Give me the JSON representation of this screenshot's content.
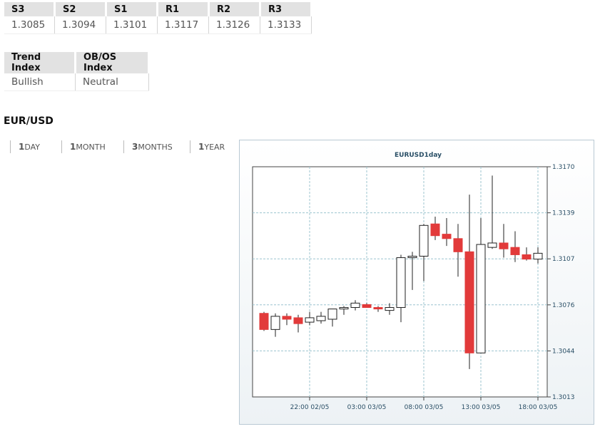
{
  "pivots": {
    "headers": [
      "S3",
      "S2",
      "S1",
      "R1",
      "R2",
      "R3"
    ],
    "values": [
      "1.3085",
      "1.3094",
      "1.3101",
      "1.3117",
      "1.3126",
      "1.3133"
    ]
  },
  "indices": {
    "headers": [
      "Trend Index",
      "OB/OS Index"
    ],
    "values": [
      "Bullish",
      "Neutral"
    ]
  },
  "pair_title": "EUR/USD",
  "ranges": [
    {
      "num": "1",
      "unit": "DAY"
    },
    {
      "num": "1",
      "unit": "MONTH"
    },
    {
      "num": "3",
      "unit": "MONTHS"
    },
    {
      "num": "1",
      "unit": "YEAR"
    }
  ],
  "chart_data": {
    "type": "candlestick",
    "title": "EURUSD1day",
    "y_ticks": [
      "1.3170",
      "1.3139",
      "1.3107",
      "1.3076",
      "1.3044",
      "1.3013"
    ],
    "ylim": [
      1.3013,
      1.317
    ],
    "x_ticks": [
      {
        "label": "22:00 02/05",
        "index": 4
      },
      {
        "label": "03:00 03/05",
        "index": 9
      },
      {
        "label": "08:00 03/05",
        "index": 14
      },
      {
        "label": "13:00 03/05",
        "index": 19
      },
      {
        "label": "18:00 03/05",
        "index": 24
      }
    ],
    "up_color": "#ffffff",
    "down_color": "#e23a3a",
    "candles": [
      {
        "o": 1.307,
        "h": 1.3071,
        "l": 1.3058,
        "c": 1.3059
      },
      {
        "o": 1.3059,
        "h": 1.307,
        "l": 1.3054,
        "c": 1.3068
      },
      {
        "o": 1.3068,
        "h": 1.307,
        "l": 1.3062,
        "c": 1.3066
      },
      {
        "o": 1.3067,
        "h": 1.3069,
        "l": 1.3057,
        "c": 1.3063
      },
      {
        "o": 1.3064,
        "h": 1.3071,
        "l": 1.3062,
        "c": 1.3067
      },
      {
        "o": 1.3065,
        "h": 1.3071,
        "l": 1.3063,
        "c": 1.3068
      },
      {
        "o": 1.3066,
        "h": 1.3073,
        "l": 1.3061,
        "c": 1.3073
      },
      {
        "o": 1.3073,
        "h": 1.3075,
        "l": 1.3069,
        "c": 1.3074
      },
      {
        "o": 1.3074,
        "h": 1.3079,
        "l": 1.3072,
        "c": 1.3077
      },
      {
        "o": 1.3076,
        "h": 1.3077,
        "l": 1.3074,
        "c": 1.3074
      },
      {
        "o": 1.3074,
        "h": 1.3075,
        "l": 1.3071,
        "c": 1.3073
      },
      {
        "o": 1.3072,
        "h": 1.3077,
        "l": 1.3069,
        "c": 1.3074
      },
      {
        "o": 1.3074,
        "h": 1.311,
        "l": 1.3064,
        "c": 1.3108
      },
      {
        "o": 1.3108,
        "h": 1.3112,
        "l": 1.3086,
        "c": 1.3109
      },
      {
        "o": 1.3109,
        "h": 1.3131,
        "l": 1.3092,
        "c": 1.313
      },
      {
        "o": 1.3131,
        "h": 1.3136,
        "l": 1.312,
        "c": 1.3123
      },
      {
        "o": 1.3124,
        "h": 1.3135,
        "l": 1.3116,
        "c": 1.3121
      },
      {
        "o": 1.3121,
        "h": 1.3131,
        "l": 1.3095,
        "c": 1.3112
      },
      {
        "o": 1.3112,
        "h": 1.3151,
        "l": 1.3032,
        "c": 1.3043
      },
      {
        "o": 1.3043,
        "h": 1.3135,
        "l": 1.3043,
        "c": 1.3117
      },
      {
        "o": 1.3115,
        "h": 1.3164,
        "l": 1.3114,
        "c": 1.3118
      },
      {
        "o": 1.3118,
        "h": 1.3131,
        "l": 1.3108,
        "c": 1.3114
      },
      {
        "o": 1.3115,
        "h": 1.3126,
        "l": 1.3105,
        "c": 1.311
      },
      {
        "o": 1.311,
        "h": 1.3115,
        "l": 1.3106,
        "c": 1.3107
      },
      {
        "o": 1.3107,
        "h": 1.3115,
        "l": 1.3104,
        "c": 1.3111
      }
    ]
  }
}
